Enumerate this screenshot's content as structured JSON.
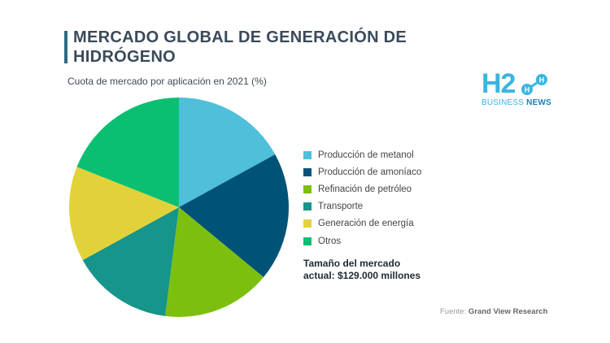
{
  "header": {
    "title": "MERCADO GLOBAL DE GENERACIÓN DE HIDRÓGENO",
    "subtitle": "Cuota de mercado por aplicación en 2021 (%)"
  },
  "logo": {
    "mark": "H2",
    "business": "BUSINESS",
    "news": "NEWS",
    "color": "#39b6e0"
  },
  "chart_data": {
    "type": "pie",
    "title": "MERCADO GLOBAL DE GENERACIÓN DE HIDRÓGENO",
    "subtitle": "Cuota de mercado por aplicación en 2021 (%)",
    "legend_position": "right",
    "slices": [
      {
        "label": "Producción de metanol",
        "value": 17,
        "color": "#4fbfda"
      },
      {
        "label": "Producción de amoníaco",
        "value": 19,
        "color": "#005377"
      },
      {
        "label": "Refinación de petróleo",
        "value": 16,
        "color": "#7cbf0f"
      },
      {
        "label": "Transporte",
        "value": 15,
        "color": "#16958a"
      },
      {
        "label": "Generación de energía",
        "value": 14,
        "color": "#e2d23a"
      },
      {
        "label": "Otros",
        "value": 19,
        "color": "#0bbf72"
      }
    ]
  },
  "market_size": {
    "line1": "Tamaño del mercado",
    "line2": "actual: $129.000 millones"
  },
  "source": {
    "label": "Fuente:",
    "name": "Grand View Research"
  }
}
